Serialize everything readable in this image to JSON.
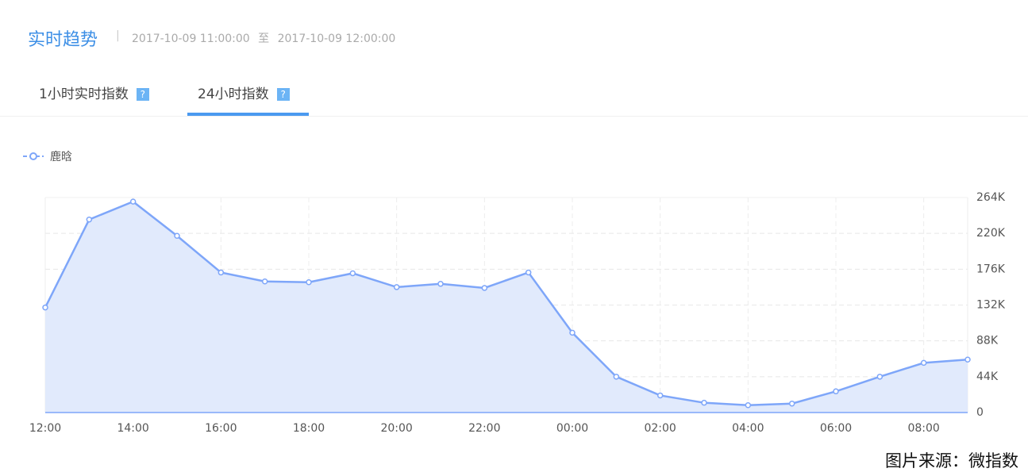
{
  "header": {
    "title": "实时趋势",
    "start": "2017-10-09 11:00:00",
    "to": "至",
    "end": "2017-10-09 12:00:00"
  },
  "tabs": [
    "1小时实时指数",
    "24小时指数"
  ],
  "chart_data": {
    "type": "line",
    "categories": [
      "12:00",
      null,
      "14:00",
      null,
      "16:00",
      null,
      "18:00",
      null,
      "20:00",
      null,
      "22:00",
      null,
      "00:00",
      null,
      "02:00",
      null,
      "04:00",
      null,
      "06:00",
      null,
      "08:00",
      null
    ],
    "series": [
      {
        "name": "鹿晗",
        "color": "#7ea6f9",
        "values": [
          129000,
          237000,
          259000,
          217000,
          172000,
          161000,
          160000,
          171000,
          154000,
          158000,
          153000,
          172000,
          98000,
          44000,
          21000,
          12000,
          9000,
          11000,
          26000,
          44000,
          61000,
          65000
        ]
      }
    ],
    "ylim": [
      0,
      264000
    ],
    "yticks": [
      {
        "value": 0,
        "label": "0"
      },
      {
        "value": 44000,
        "label": "44K"
      },
      {
        "value": 88000,
        "label": "88K"
      },
      {
        "value": 132000,
        "label": "132K"
      },
      {
        "value": 176000,
        "label": "176K"
      },
      {
        "value": 220000,
        "label": "220K"
      },
      {
        "value": 264000,
        "label": "264K"
      }
    ],
    "grid": true,
    "area": true,
    "area_color": "#e1eafc",
    "legend": "top-left"
  },
  "source": "图片来源：微指数"
}
